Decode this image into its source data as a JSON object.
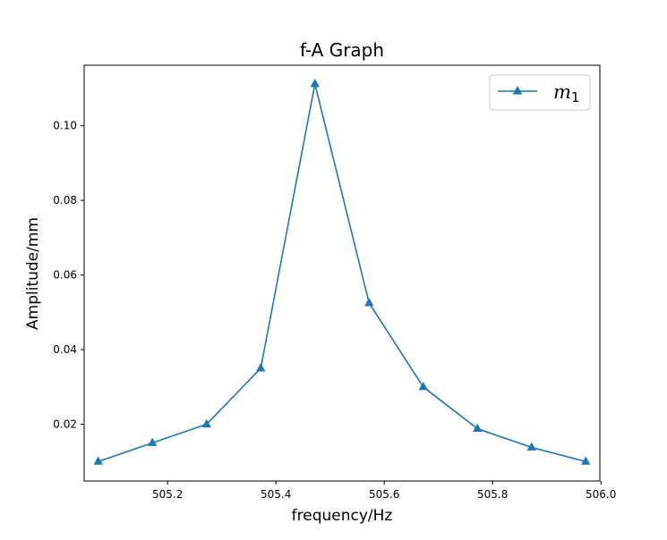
{
  "chart_data": {
    "type": "line",
    "title": "f-A Graph",
    "xlabel": "frequency/Hz",
    "ylabel": "Amplitude/mm",
    "xlim": [
      505.046,
      505.998
    ],
    "ylim": [
      0.0048,
      0.1162
    ],
    "xticks": [
      505.2,
      505.4,
      505.6,
      505.8,
      506.0
    ],
    "xtick_labels": [
      "505.2",
      "505.4",
      "505.6",
      "505.8",
      "506.0"
    ],
    "yticks": [
      0.02,
      0.04,
      0.06,
      0.08,
      0.1
    ],
    "ytick_labels": [
      "0.02",
      "0.04",
      "0.06",
      "0.08",
      "0.10"
    ],
    "grid": false,
    "legend_position": "top-right",
    "series": [
      {
        "name": "m",
        "name_subscript": "1",
        "color": "#1f77b4",
        "marker": "triangle-up",
        "x": [
          505.072,
          505.172,
          505.272,
          505.372,
          505.472,
          505.572,
          505.672,
          505.772,
          505.872,
          505.972
        ],
        "y": [
          0.01,
          0.015,
          0.02,
          0.035,
          0.1112,
          0.0525,
          0.03,
          0.0188,
          0.0138,
          0.01
        ]
      }
    ]
  }
}
